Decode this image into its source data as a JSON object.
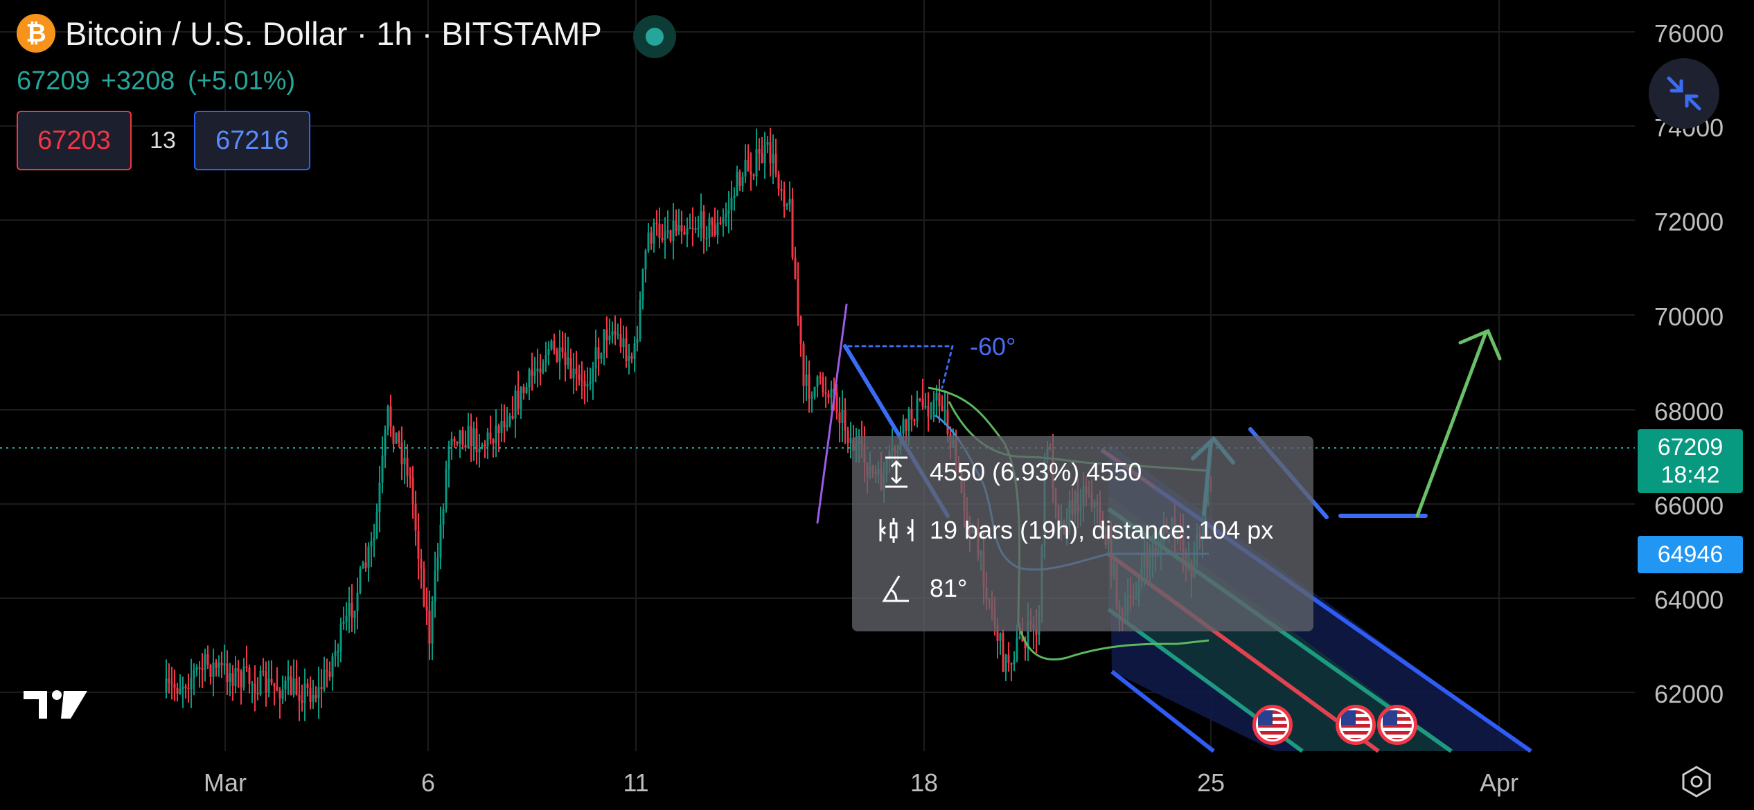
{
  "header": {
    "symbol_icon": "bitcoin-icon",
    "symbol_icon_glyph": "₿",
    "title": "Bitcoin / U.S. Dollar · 1h · BITSTAMP",
    "last_price": "67209",
    "change": "+3208",
    "change_pct": "(+5.01%)",
    "bid": "67203",
    "spread": "13",
    "ask": "67216"
  },
  "price_axis": {
    "ticks": [
      "76000",
      "74000",
      "72000",
      "70000",
      "68000",
      "66000",
      "64000",
      "62000"
    ],
    "current_price": "67209",
    "countdown": "18:42",
    "marker_price": "64946"
  },
  "time_axis": {
    "ticks": [
      "Mar",
      "6",
      "11",
      "18",
      "25",
      "Apr"
    ]
  },
  "measure_tooltip": {
    "price_range": "4550 (6.93%) 4550",
    "bars": "19 bars (19h), distance: 104 px",
    "angle": "81°"
  },
  "drawing": {
    "angle_label": "-60°"
  },
  "colors": {
    "up": "#089981",
    "down": "#f23645",
    "accent_blue": "#2962ff",
    "bitcoin": "#f7931a"
  },
  "icons": {
    "collapse": "collapse-icon",
    "settings": "settings-icon",
    "logo": "tradingview-logo",
    "event": "us-flag-event-icon"
  }
}
